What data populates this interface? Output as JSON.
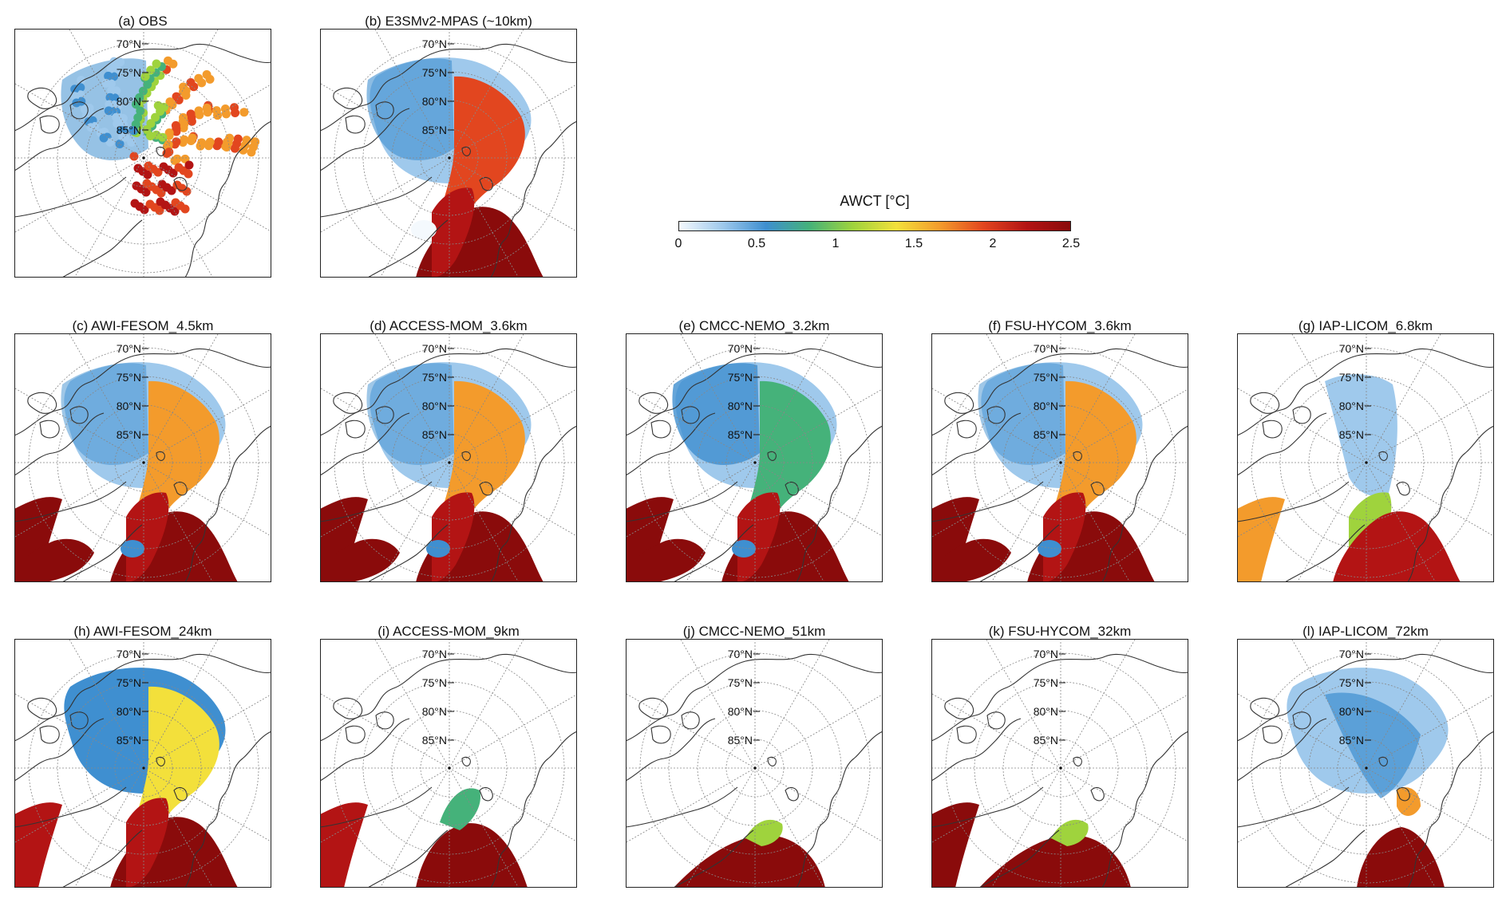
{
  "colorbar": {
    "title": "AWCT [°C]",
    "ticks": [
      "0",
      "0.5",
      "1",
      "1.5",
      "2",
      "2.5"
    ],
    "range": [
      0,
      2.5
    ],
    "colors": [
      "#f4f9fd",
      "#9fc9ec",
      "#3f8fd0",
      "#45b27a",
      "#9fd33d",
      "#f3e03b",
      "#f39b2c",
      "#e2461f",
      "#b31414",
      "#8a0b0b"
    ]
  },
  "lat_labels": [
    "70°N",
    "75°N",
    "80°N",
    "85°N"
  ],
  "panels": [
    {
      "title": "(a) OBS",
      "style": "obs"
    },
    {
      "title": "(b) E3SMv2-MPAS (~10km)",
      "style": "e3sm"
    },
    {
      "title": "(c) AWI-FESOM_4.5km",
      "style": "hiwarm"
    },
    {
      "title": "(d) ACCESS-MOM_3.6km",
      "style": "hiwarm"
    },
    {
      "title": "(e) CMCC-NEMO_3.2km",
      "style": "cmcc"
    },
    {
      "title": "(f) FSU-HYCOM_3.6km",
      "style": "hiwarm"
    },
    {
      "title": "(g) IAP-LICOM_6.8km",
      "style": "licom"
    },
    {
      "title": "(h) AWI-FESOM_24km",
      "style": "lowfesom"
    },
    {
      "title": "(i) ACCESS-MOM_9km",
      "style": "lowlimited"
    },
    {
      "title": "(j) CMCC-NEMO_51km",
      "style": "lowsmall"
    },
    {
      "title": "(k) FSU-HYCOM_32km",
      "style": "lowsmall2"
    },
    {
      "title": "(l) IAP-LICOM_72km",
      "style": "licomlow"
    }
  ]
}
